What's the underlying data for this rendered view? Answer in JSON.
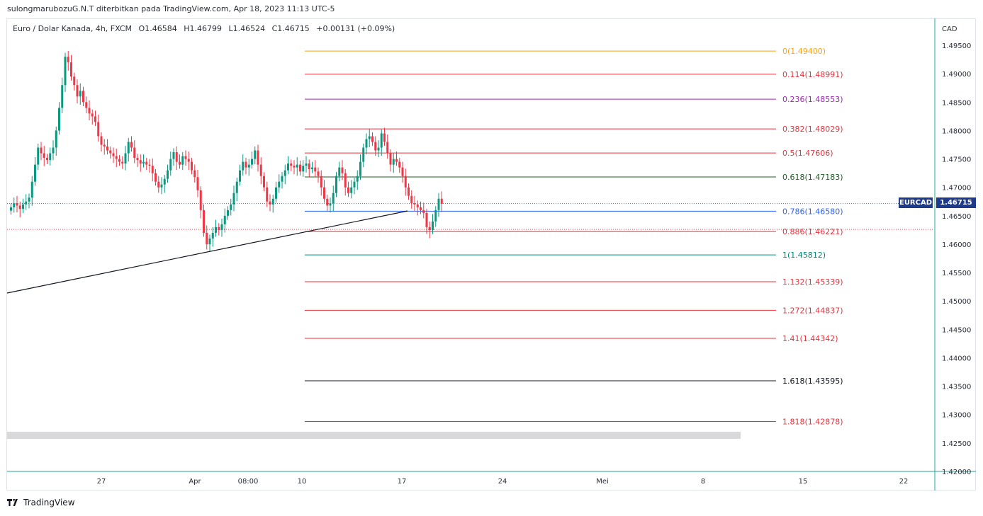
{
  "attribution": "sulongmarubozuG.N.T diterbitkan pada TradingView.com, Apr 18, 2023 11:13 UTC-5",
  "legend": {
    "symbol": "Euro / Dolar Kanada, 4h, FXCM",
    "open": "O1.46584",
    "high": "H1.46799",
    "low": "L1.46524",
    "close": "C1.46715",
    "change": "+0.00131 (+0.09%)"
  },
  "footer": {
    "brand": "TradingView"
  },
  "price_tag": {
    "symbol": "EURCAD",
    "price": "1.46715"
  },
  "colors": {
    "up": "#089981",
    "down": "#f23645",
    "fib_red": "#e8323c",
    "fib_orange": "#f7a21b",
    "fib_purple": "#9c27b0",
    "fib_green": "#1b5e20",
    "fib_blue": "#2962ff",
    "fib_teal": "#00897b",
    "fib_black": "#131722",
    "tag_bg": "#1e3a8a"
  },
  "chart_data": {
    "type": "candlestick",
    "currency": "CAD",
    "ylim": [
      1.42,
      1.498
    ],
    "y_ticks": [
      "1.49500",
      "1.49000",
      "1.48500",
      "1.48000",
      "1.47500",
      "1.47000",
      "1.46500",
      "1.46000",
      "1.45500",
      "1.45000",
      "1.44500",
      "1.44000",
      "1.43500",
      "1.43000",
      "1.42500",
      "1.42000"
    ],
    "x_labels": [
      "27",
      "Apr",
      "08:00",
      "10",
      "17",
      "24",
      "Mei",
      "8",
      "15",
      "22"
    ],
    "last_price": 1.46715,
    "fib_levels": [
      {
        "label": "0(1.49400)",
        "price": 1.494,
        "color": "#f7a21b"
      },
      {
        "label": "0.114(1.48991)",
        "price": 1.48991,
        "color": "#e8323c"
      },
      {
        "label": "0.236(1.48553)",
        "price": 1.48553,
        "color": "#9c27b0"
      },
      {
        "label": "0.382(1.48029)",
        "price": 1.48029,
        "color": "#e8323c"
      },
      {
        "label": "0.5(1.47606)",
        "price": 1.47606,
        "color": "#e8323c"
      },
      {
        "label": "0.618(1.47183)",
        "price": 1.47183,
        "color": "#1b5e20"
      },
      {
        "label": "0.786(1.46580)",
        "price": 1.4658,
        "color": "#2962ff"
      },
      {
        "label": "0.886(1.46221)",
        "price": 1.46221,
        "color": "#e8323c"
      },
      {
        "label": "1(1.45812)",
        "price": 1.45812,
        "color": "#00897b"
      },
      {
        "label": "1.132(1.45339)",
        "price": 1.45339,
        "color": "#e8323c"
      },
      {
        "label": "1.272(1.44837)",
        "price": 1.44837,
        "color": "#e8323c"
      },
      {
        "label": "1.41(1.44342)",
        "price": 1.44342,
        "color": "#e8323c"
      },
      {
        "label": "1.618(1.43595)",
        "price": 1.43595,
        "color": "#131722"
      },
      {
        "label": "1.818(1.42878)",
        "price": 1.42878,
        "color": "#e8323c"
      }
    ],
    "closes": [
      1.4665,
      1.4672,
      1.4668,
      1.4662,
      1.467,
      1.4675,
      1.4682,
      1.471,
      1.474,
      1.477,
      1.476,
      1.4752,
      1.4748,
      1.476,
      1.477,
      1.48,
      1.484,
      1.488,
      1.493,
      1.492,
      1.4895,
      1.488,
      1.486,
      1.487,
      1.485,
      1.484,
      1.483,
      1.4825,
      1.4815,
      1.479,
      1.4775,
      1.4772,
      1.4765,
      1.476,
      1.4755,
      1.475,
      1.4745,
      1.4742,
      1.476,
      1.478,
      1.477,
      1.4752,
      1.4748,
      1.4742,
      1.4745,
      1.474,
      1.4738,
      1.4725,
      1.471,
      1.47,
      1.4705,
      1.4715,
      1.473,
      1.475,
      1.4762,
      1.4745,
      1.474,
      1.4755,
      1.475,
      1.4745,
      1.473,
      1.4718,
      1.4695,
      1.466,
      1.462,
      1.46,
      1.461,
      1.462,
      1.463,
      1.4625,
      1.4635,
      1.465,
      1.466,
      1.467,
      1.469,
      1.471,
      1.473,
      1.4745,
      1.4735,
      1.474,
      1.475,
      1.4765,
      1.474,
      1.472,
      1.47,
      1.4675,
      1.467,
      1.468,
      1.47,
      1.471,
      1.472,
      1.473,
      1.4742,
      1.4738,
      1.4735,
      1.474,
      1.4728,
      1.4738,
      1.4742,
      1.4732,
      1.4735,
      1.4728,
      1.472,
      1.47,
      1.468,
      1.4668,
      1.4672,
      1.469,
      1.472,
      1.4735,
      1.4725,
      1.47,
      1.469,
      1.47,
      1.471,
      1.472,
      1.4745,
      1.477,
      1.4785,
      1.479,
      1.478,
      1.4765,
      1.477,
      1.4795,
      1.478,
      1.476,
      1.474,
      1.475,
      1.4745,
      1.4735,
      1.472,
      1.47,
      1.4685,
      1.4672,
      1.467,
      1.4665,
      1.466,
      1.4655,
      1.463,
      1.4625,
      1.464,
      1.466,
      1.468,
      1.4671
    ]
  }
}
